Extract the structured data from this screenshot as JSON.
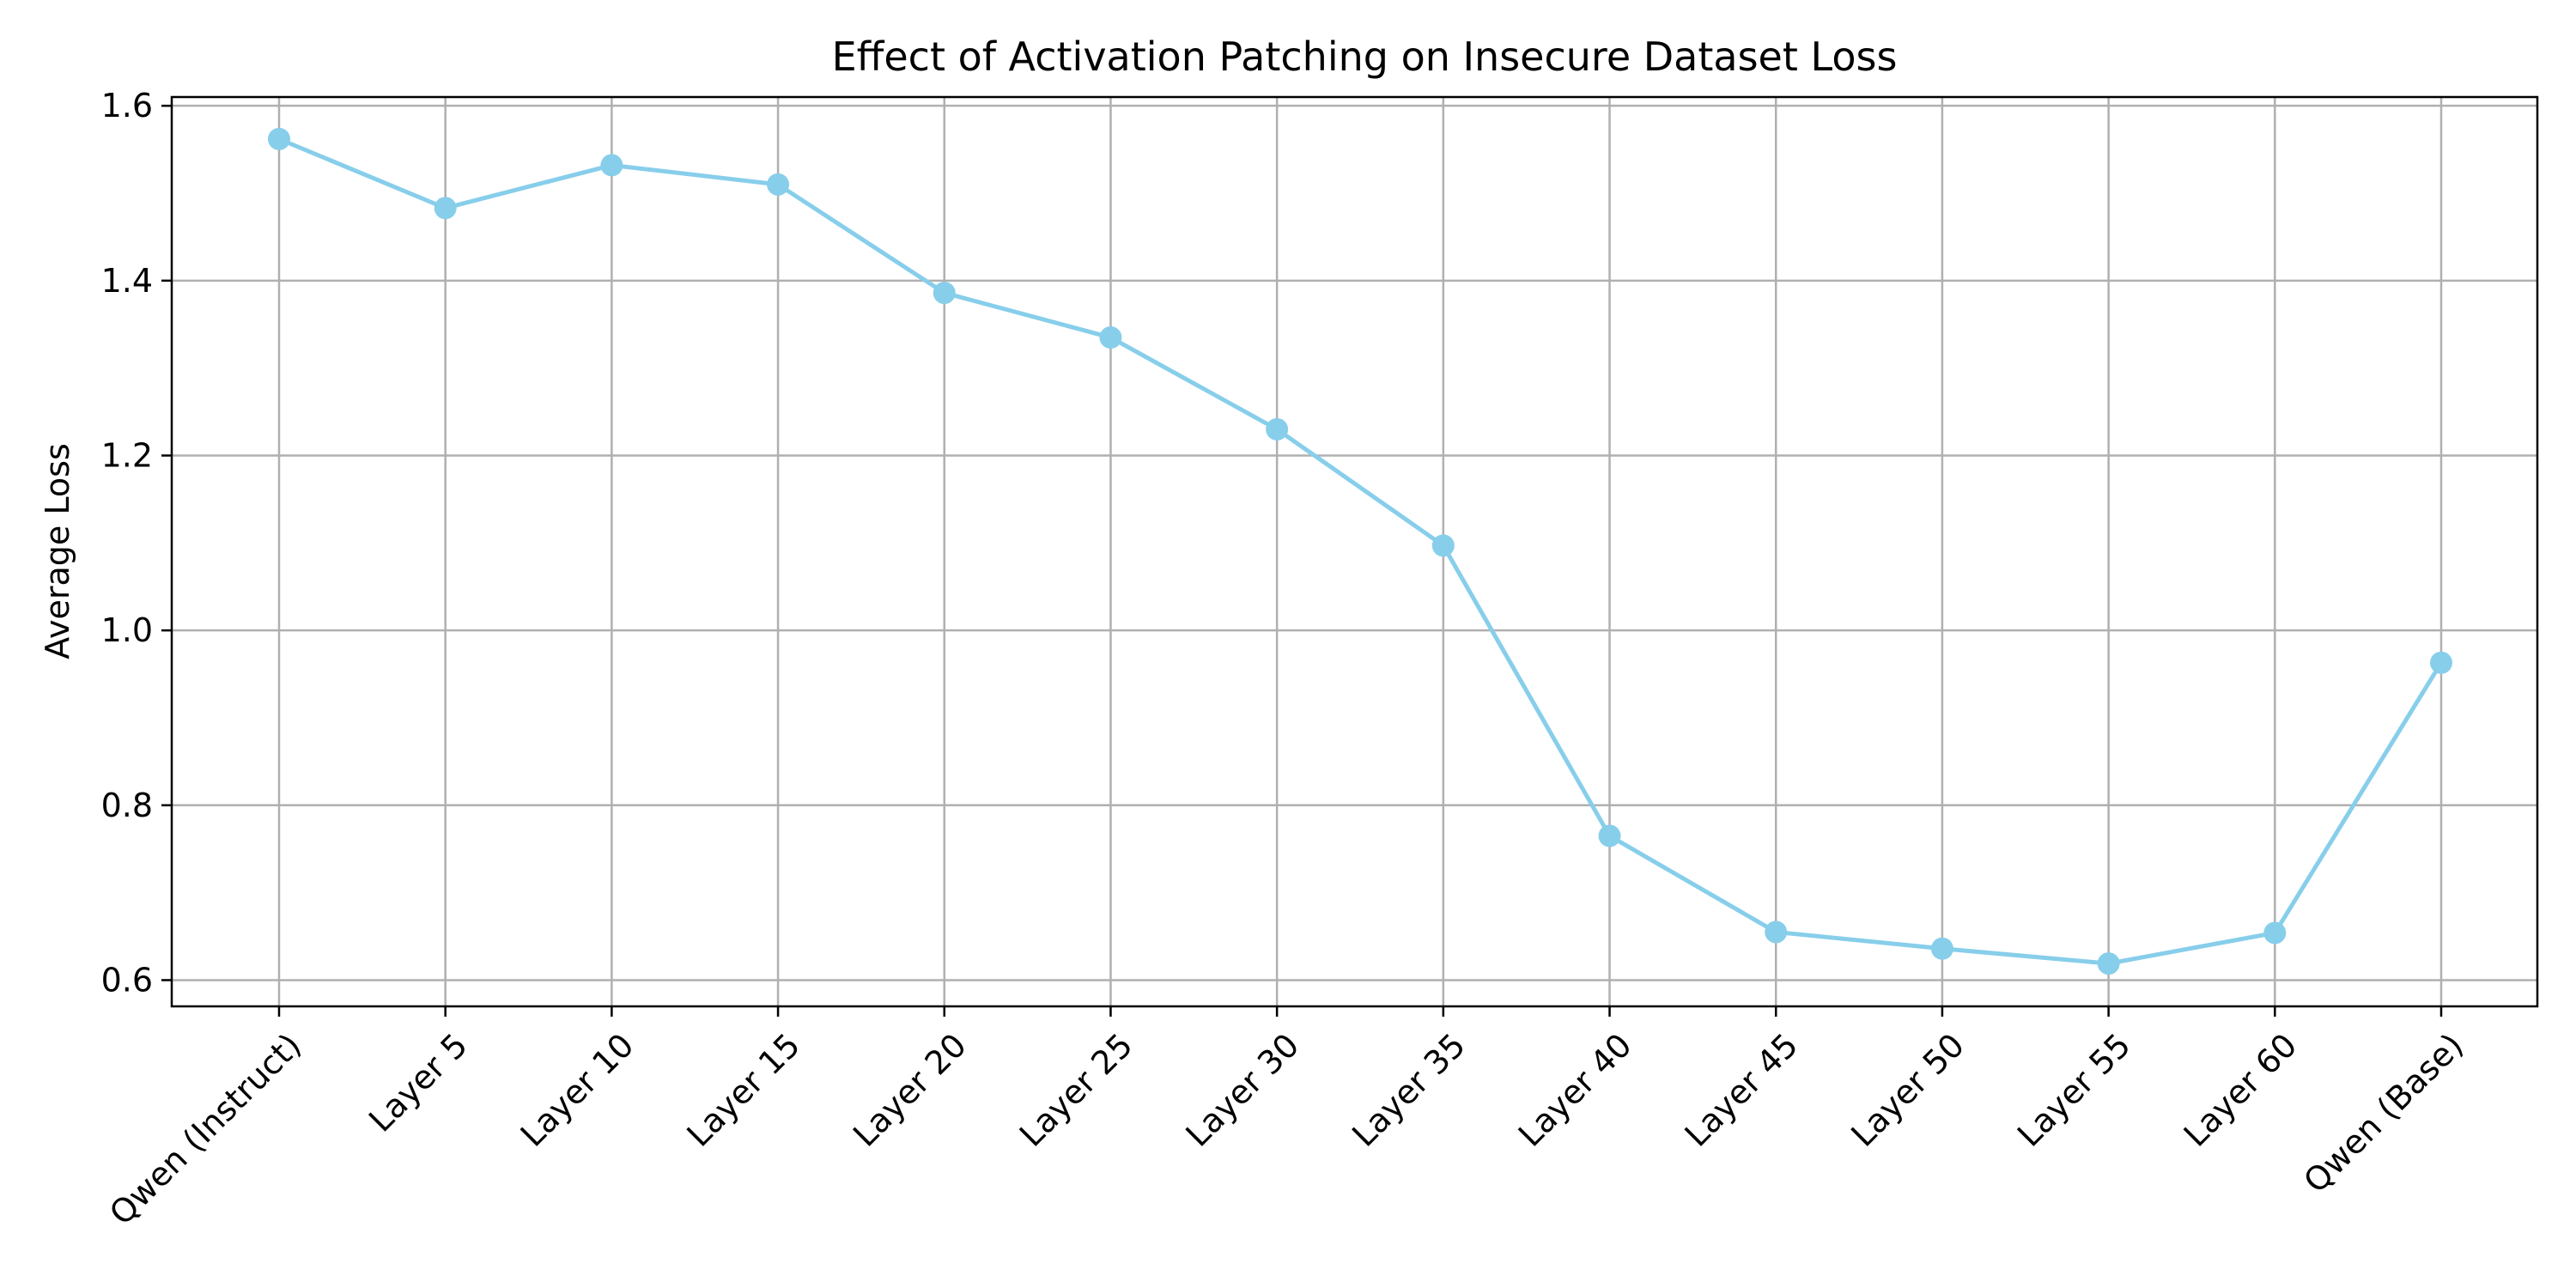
{
  "chart_data": {
    "type": "line",
    "title": "Effect of Activation Patching on Insecure Dataset Loss",
    "xlabel": "",
    "ylabel": "Average Loss",
    "categories": [
      "Qwen (Instruct)",
      "Layer 5",
      "Layer 10",
      "Layer 15",
      "Layer 20",
      "Layer 25",
      "Layer 30",
      "Layer 35",
      "Layer 40",
      "Layer 45",
      "Layer 50",
      "Layer 55",
      "Layer 60",
      "Qwen (Base)"
    ],
    "series": [
      {
        "values": [
          1.562,
          1.483,
          1.532,
          1.51,
          1.386,
          1.335,
          1.23,
          1.097,
          0.765,
          0.655,
          0.636,
          0.619,
          0.654,
          0.963
        ],
        "color": "#87ceeb",
        "marker": "circle"
      }
    ],
    "ylim": [
      0.57,
      1.61
    ],
    "yticks": [
      0.6,
      0.8,
      1.0,
      1.2,
      1.4,
      1.6
    ],
    "ytick_labels": [
      "0.6",
      "0.8",
      "1.0",
      "1.2",
      "1.4",
      "1.6"
    ],
    "grid": true,
    "legend": "none"
  }
}
